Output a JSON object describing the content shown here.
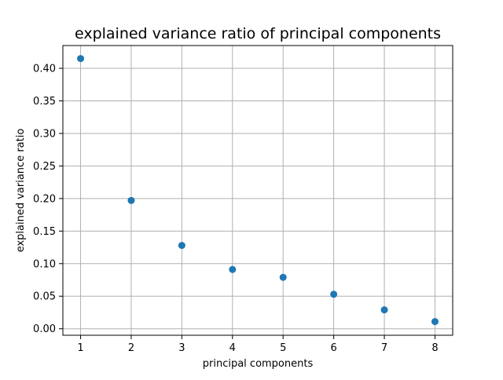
{
  "chart_data": {
    "type": "scatter",
    "title": "explained variance ratio of principal components",
    "xlabel": "principal components",
    "ylabel": "explained variance ratio",
    "x": [
      1,
      2,
      3,
      4,
      5,
      6,
      7,
      8
    ],
    "y": [
      0.415,
      0.197,
      0.128,
      0.091,
      0.079,
      0.053,
      0.029,
      0.011
    ],
    "xlim": [
      0.65,
      8.35
    ],
    "ylim": [
      -0.01,
      0.435
    ],
    "xticks": [
      1,
      2,
      3,
      4,
      5,
      6,
      7,
      8
    ],
    "yticks": [
      0.0,
      0.05,
      0.1,
      0.15,
      0.2,
      0.25,
      0.3,
      0.35,
      0.4
    ],
    "ytick_labels": [
      "0.00",
      "0.05",
      "0.10",
      "0.15",
      "0.20",
      "0.25",
      "0.30",
      "0.35",
      "0.40"
    ],
    "grid": true,
    "marker_color": "#1f77b4",
    "grid_color": "#b0b0b0"
  }
}
